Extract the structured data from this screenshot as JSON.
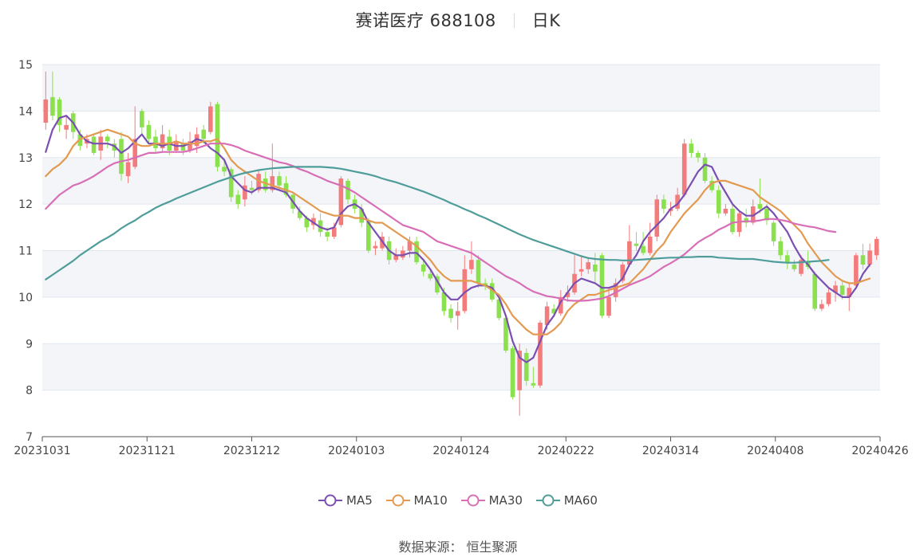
{
  "header": {
    "stock_name_code": "赛诺医疗 688108",
    "period": "日K"
  },
  "source_label": "数据来源：  恒生聚源",
  "colors": {
    "up": "#f47b7b",
    "down": "#8be04e",
    "ma5": "#7b4fb1",
    "ma10": "#e39a50",
    "ma30": "#d86fb6",
    "ma60": "#4f9d9a",
    "band": "#f3f5f9",
    "grid": "#e0e6ee"
  },
  "chart_data": {
    "type": "candlestick",
    "title": "赛诺医疗 688108 日K",
    "ylim": [
      7,
      15
    ],
    "yticks": [
      "7",
      "8",
      "9",
      "10",
      "11",
      "12",
      "13",
      "14",
      "15"
    ],
    "xticks": [
      "20231031",
      "20231121",
      "20231212",
      "20240103",
      "20240124",
      "20240222",
      "20240314",
      "20240408",
      "20240426"
    ],
    "candles": {
      "columns": [
        "open",
        "close",
        "high",
        "low"
      ],
      "rows": [
        [
          13.75,
          14.25,
          14.85,
          13.6
        ],
        [
          14.3,
          13.9,
          14.85,
          13.8
        ],
        [
          14.25,
          13.7,
          14.3,
          13.55
        ],
        [
          13.6,
          13.7,
          13.9,
          13.4
        ],
        [
          13.95,
          13.55,
          14.0,
          13.4
        ],
        [
          13.5,
          13.25,
          13.6,
          13.15
        ],
        [
          13.3,
          13.4,
          13.5,
          13.2
        ],
        [
          13.45,
          13.1,
          13.5,
          13.05
        ],
        [
          13.15,
          13.45,
          13.6,
          12.95
        ],
        [
          13.45,
          13.35,
          13.5,
          13.2
        ],
        [
          13.3,
          13.15,
          13.4,
          13.0
        ],
        [
          13.4,
          12.65,
          13.55,
          12.5
        ],
        [
          12.6,
          12.9,
          13.1,
          12.45
        ],
        [
          12.8,
          13.4,
          14.1,
          12.75
        ],
        [
          14.0,
          13.65,
          14.05,
          13.5
        ],
        [
          13.7,
          13.4,
          13.8,
          13.3
        ],
        [
          13.45,
          13.2,
          13.6,
          13.1
        ],
        [
          13.2,
          13.5,
          13.7,
          13.1
        ],
        [
          13.45,
          13.15,
          13.6,
          13.05
        ],
        [
          13.15,
          13.35,
          13.5,
          13.1
        ],
        [
          13.3,
          13.15,
          13.4,
          13.05
        ],
        [
          13.15,
          13.35,
          13.55,
          13.1
        ],
        [
          13.25,
          13.5,
          13.65,
          13.1
        ],
        [
          13.6,
          13.4,
          13.7,
          13.3
        ],
        [
          13.55,
          14.1,
          14.2,
          13.5
        ],
        [
          14.15,
          12.8,
          14.2,
          12.7
        ],
        [
          12.8,
          12.7,
          12.95,
          12.6
        ],
        [
          12.75,
          12.15,
          12.8,
          12.05
        ],
        [
          12.2,
          12.0,
          12.3,
          11.9
        ],
        [
          12.1,
          12.4,
          12.6,
          11.95
        ],
        [
          12.35,
          12.3,
          12.5,
          12.2
        ],
        [
          12.3,
          12.65,
          12.75,
          12.25
        ],
        [
          12.55,
          12.3,
          12.7,
          12.25
        ],
        [
          12.3,
          12.6,
          13.3,
          12.25
        ],
        [
          12.6,
          12.4,
          12.7,
          12.3
        ],
        [
          12.45,
          12.2,
          12.6,
          12.15
        ],
        [
          12.2,
          11.9,
          12.25,
          11.8
        ],
        [
          11.85,
          11.7,
          11.95,
          11.65
        ],
        [
          11.7,
          11.5,
          11.75,
          11.4
        ],
        [
          11.55,
          11.7,
          11.8,
          11.45
        ],
        [
          11.65,
          11.4,
          11.8,
          11.3
        ],
        [
          11.4,
          11.3,
          11.5,
          11.2
        ],
        [
          11.3,
          11.5,
          11.6,
          11.25
        ],
        [
          11.55,
          12.55,
          12.6,
          11.5
        ],
        [
          12.5,
          12.1,
          12.55,
          12.0
        ],
        [
          12.1,
          11.9,
          12.2,
          11.8
        ],
        [
          11.9,
          11.6,
          12.0,
          11.5
        ],
        [
          11.65,
          11.0,
          11.7,
          10.95
        ],
        [
          11.05,
          11.1,
          11.2,
          10.9
        ],
        [
          11.05,
          11.3,
          11.4,
          11.0
        ],
        [
          11.2,
          10.8,
          11.3,
          10.7
        ],
        [
          10.8,
          10.9,
          11.05,
          10.75
        ],
        [
          10.85,
          11.0,
          11.1,
          10.8
        ],
        [
          11.0,
          11.2,
          11.3,
          10.85
        ],
        [
          11.2,
          10.75,
          11.3,
          10.7
        ],
        [
          10.7,
          10.55,
          10.8,
          10.45
        ],
        [
          10.5,
          10.4,
          10.6,
          10.35
        ],
        [
          10.45,
          10.1,
          10.5,
          10.05
        ],
        [
          10.1,
          9.7,
          10.2,
          9.6
        ],
        [
          9.75,
          9.55,
          9.85,
          9.45
        ],
        [
          9.6,
          9.7,
          9.9,
          9.3
        ],
        [
          9.7,
          10.6,
          10.9,
          9.65
        ],
        [
          10.6,
          10.8,
          11.2,
          10.5
        ],
        [
          10.8,
          10.3,
          10.9,
          10.2
        ],
        [
          10.3,
          10.25,
          10.4,
          10.15
        ],
        [
          10.3,
          9.95,
          10.4,
          9.9
        ],
        [
          9.95,
          9.55,
          10.05,
          9.5
        ],
        [
          9.55,
          8.85,
          9.6,
          8.8
        ],
        [
          8.9,
          7.85,
          8.95,
          7.8
        ],
        [
          8.0,
          8.85,
          9.0,
          7.45
        ],
        [
          8.8,
          8.2,
          8.9,
          8.1
        ],
        [
          8.15,
          8.1,
          8.5,
          8.05
        ],
        [
          8.1,
          9.45,
          9.5,
          8.05
        ],
        [
          9.4,
          9.8,
          9.9,
          9.3
        ],
        [
          9.75,
          9.65,
          9.85,
          9.6
        ],
        [
          9.65,
          10.0,
          10.15,
          9.6
        ],
        [
          10.0,
          10.1,
          10.25,
          9.9
        ],
        [
          10.1,
          10.5,
          10.9,
          10.05
        ],
        [
          10.55,
          10.6,
          10.9,
          10.45
        ],
        [
          10.6,
          10.75,
          10.85,
          10.5
        ],
        [
          10.7,
          10.55,
          10.95,
          10.3
        ],
        [
          10.9,
          9.6,
          10.95,
          9.55
        ],
        [
          9.6,
          10.0,
          10.2,
          9.55
        ],
        [
          10.0,
          10.3,
          10.4,
          9.9
        ],
        [
          10.35,
          10.7,
          10.75,
          10.3
        ],
        [
          10.7,
          11.2,
          11.55,
          10.65
        ],
        [
          11.15,
          11.1,
          11.4,
          11.0
        ],
        [
          11.1,
          10.95,
          11.4,
          10.9
        ],
        [
          10.95,
          11.3,
          11.6,
          10.9
        ],
        [
          11.3,
          12.1,
          12.2,
          11.2
        ],
        [
          12.1,
          11.9,
          12.2,
          11.8
        ],
        [
          11.85,
          11.9,
          12.05,
          11.75
        ],
        [
          11.9,
          12.2,
          12.35,
          11.85
        ],
        [
          12.2,
          13.3,
          13.4,
          12.15
        ],
        [
          13.3,
          13.1,
          13.4,
          13.0
        ],
        [
          13.1,
          13.0,
          13.15,
          12.9
        ],
        [
          13.0,
          12.5,
          13.1,
          12.45
        ],
        [
          12.5,
          12.3,
          12.6,
          12.25
        ],
        [
          12.3,
          11.8,
          12.4,
          11.7
        ],
        [
          11.8,
          11.9,
          12.0,
          11.75
        ],
        [
          11.9,
          11.4,
          12.0,
          11.35
        ],
        [
          11.4,
          11.8,
          11.85,
          11.3
        ],
        [
          11.7,
          11.6,
          11.9,
          11.5
        ],
        [
          11.6,
          11.95,
          12.1,
          11.55
        ],
        [
          12.0,
          11.9,
          12.55,
          11.8
        ],
        [
          11.9,
          11.65,
          12.0,
          11.55
        ],
        [
          11.6,
          11.2,
          11.65,
          11.1
        ],
        [
          11.2,
          10.9,
          11.3,
          10.8
        ],
        [
          10.9,
          10.75,
          11.0,
          10.6
        ],
        [
          10.7,
          10.6,
          10.8,
          10.55
        ],
        [
          10.5,
          10.8,
          10.9,
          10.45
        ],
        [
          10.75,
          10.65,
          11.0,
          10.6
        ],
        [
          10.5,
          9.75,
          10.55,
          9.7
        ],
        [
          9.75,
          9.85,
          9.95,
          9.7
        ],
        [
          9.85,
          10.1,
          10.2,
          9.8
        ],
        [
          10.1,
          10.25,
          10.35,
          9.9
        ],
        [
          10.25,
          10.05,
          10.35,
          9.95
        ],
        [
          10.0,
          10.2,
          10.3,
          9.7
        ],
        [
          10.25,
          10.9,
          10.95,
          10.2
        ],
        [
          10.9,
          10.7,
          11.15,
          10.6
        ],
        [
          10.7,
          11.0,
          11.15,
          10.65
        ],
        [
          10.9,
          11.25,
          11.3,
          10.8
        ]
      ]
    },
    "series": [
      {
        "name": "MA5",
        "values": [
          13.12,
          13.6,
          13.85,
          13.9,
          13.75,
          13.5,
          13.35,
          13.3,
          13.3,
          13.3,
          13.25,
          13.1,
          13.2,
          13.35,
          13.5,
          13.3,
          13.3,
          13.25,
          13.3,
          13.25,
          13.25,
          13.3,
          13.4,
          13.35,
          13.2,
          13.1,
          12.95,
          12.6,
          12.45,
          12.3,
          12.25,
          12.35,
          12.35,
          12.35,
          12.3,
          12.25,
          12.05,
          11.85,
          11.7,
          11.6,
          11.5,
          11.45,
          11.5,
          11.8,
          11.95,
          12.0,
          11.9,
          11.6,
          11.4,
          11.2,
          11.0,
          10.9,
          10.9,
          10.95,
          10.95,
          10.8,
          10.6,
          10.35,
          10.1,
          9.95,
          9.95,
          10.1,
          10.2,
          10.25,
          10.25,
          10.2,
          10.0,
          9.6,
          9.05,
          8.7,
          8.6,
          8.7,
          9.05,
          9.4,
          9.6,
          9.9,
          10.1,
          10.3,
          10.4,
          10.35,
          10.3,
          10.2,
          10.2,
          10.25,
          10.4,
          10.7,
          10.9,
          11.2,
          11.4,
          11.55,
          11.7,
          11.9,
          12.0,
          12.2,
          12.45,
          12.7,
          12.85,
          12.8,
          12.5,
          12.25,
          12.0,
          11.85,
          11.75,
          11.75,
          11.85,
          11.95,
          11.8,
          11.6,
          11.4,
          11.1,
          10.85,
          10.7,
          10.5,
          10.35,
          10.2,
          10.1,
          10.0,
          10.0,
          10.2,
          10.5,
          10.7
        ]
      },
      {
        "name": "MA10",
        "values": [
          12.6,
          12.75,
          12.85,
          13.0,
          13.25,
          13.4,
          13.45,
          13.5,
          13.55,
          13.6,
          13.55,
          13.5,
          13.45,
          13.3,
          13.25,
          13.25,
          13.3,
          13.3,
          13.3,
          13.35,
          13.3,
          13.3,
          13.3,
          13.35,
          13.35,
          13.4,
          13.2,
          12.95,
          12.8,
          12.7,
          12.6,
          12.5,
          12.45,
          12.4,
          12.35,
          12.3,
          12.25,
          12.15,
          12.05,
          11.95,
          11.85,
          11.8,
          11.75,
          11.75,
          11.75,
          11.7,
          11.7,
          11.65,
          11.6,
          11.6,
          11.5,
          11.4,
          11.3,
          11.2,
          11.1,
          10.95,
          10.8,
          10.6,
          10.45,
          10.35,
          10.35,
          10.35,
          10.35,
          10.3,
          10.25,
          10.15,
          10.05,
          9.85,
          9.6,
          9.45,
          9.3,
          9.2,
          9.2,
          9.2,
          9.3,
          9.45,
          9.7,
          9.85,
          9.95,
          10.05,
          10.05,
          10.1,
          10.15,
          10.2,
          10.25,
          10.3,
          10.45,
          10.6,
          10.8,
          11.0,
          11.15,
          11.4,
          11.6,
          11.8,
          11.95,
          12.1,
          12.3,
          12.45,
          12.5,
          12.5,
          12.45,
          12.4,
          12.35,
          12.3,
          12.15,
          12.05,
          11.95,
          11.85,
          11.7,
          11.55,
          11.4,
          11.15,
          10.95,
          10.75,
          10.6,
          10.45,
          10.35,
          10.3,
          10.3,
          10.35,
          10.4
        ]
      },
      {
        "name": "MA30",
        "values": [
          11.9,
          12.05,
          12.2,
          12.3,
          12.4,
          12.45,
          12.52,
          12.6,
          12.7,
          12.8,
          12.88,
          12.92,
          12.95,
          13.0,
          13.05,
          13.1,
          13.1,
          13.12,
          13.12,
          13.12,
          13.12,
          13.15,
          13.2,
          13.25,
          13.3,
          13.3,
          13.3,
          13.27,
          13.22,
          13.15,
          13.1,
          13.05,
          13.0,
          12.95,
          12.9,
          12.87,
          12.82,
          12.75,
          12.7,
          12.63,
          12.57,
          12.5,
          12.45,
          12.4,
          12.33,
          12.25,
          12.15,
          12.05,
          11.95,
          11.85,
          11.75,
          11.65,
          11.55,
          11.5,
          11.45,
          11.4,
          11.3,
          11.2,
          11.15,
          11.1,
          11.05,
          11.0,
          10.95,
          10.85,
          10.75,
          10.65,
          10.55,
          10.45,
          10.38,
          10.3,
          10.2,
          10.12,
          10.07,
          10.02,
          10.0,
          9.97,
          9.93,
          9.92,
          9.92,
          9.93,
          9.95,
          9.97,
          10.02,
          10.1,
          10.18,
          10.26,
          10.32,
          10.38,
          10.45,
          10.55,
          10.65,
          10.73,
          10.82,
          10.92,
          11.05,
          11.18,
          11.27,
          11.35,
          11.45,
          11.52,
          11.6,
          11.62,
          11.63,
          11.63,
          11.65,
          11.68,
          11.68,
          11.66,
          11.63,
          11.58,
          11.55,
          11.52,
          11.5,
          11.46,
          11.42,
          11.4
        ]
      },
      {
        "name": "MA60",
        "values": [
          10.38,
          10.48,
          10.58,
          10.68,
          10.78,
          10.9,
          11.0,
          11.1,
          11.2,
          11.28,
          11.37,
          11.48,
          11.57,
          11.65,
          11.75,
          11.83,
          11.92,
          11.99,
          12.05,
          12.12,
          12.18,
          12.24,
          12.3,
          12.36,
          12.42,
          12.48,
          12.53,
          12.58,
          12.63,
          12.67,
          12.7,
          12.73,
          12.75,
          12.77,
          12.78,
          12.79,
          12.8,
          12.8,
          12.8,
          12.8,
          12.8,
          12.79,
          12.78,
          12.76,
          12.73,
          12.7,
          12.67,
          12.64,
          12.6,
          12.55,
          12.51,
          12.47,
          12.42,
          12.37,
          12.32,
          12.27,
          12.21,
          12.15,
          12.09,
          12.02,
          11.96,
          11.89,
          11.83,
          11.76,
          11.7,
          11.63,
          11.56,
          11.49,
          11.42,
          11.35,
          11.29,
          11.23,
          11.18,
          11.13,
          11.08,
          11.03,
          10.98,
          10.93,
          10.88,
          10.84,
          10.82,
          10.81,
          10.8,
          10.8,
          10.79,
          10.79,
          10.8,
          10.81,
          10.82,
          10.83,
          10.84,
          10.85,
          10.85,
          10.86,
          10.86,
          10.87,
          10.87,
          10.87,
          10.85,
          10.84,
          10.83,
          10.82,
          10.82,
          10.82,
          10.8,
          10.78,
          10.76,
          10.75,
          10.74,
          10.74,
          10.75,
          10.76,
          10.77,
          10.78,
          10.8
        ]
      }
    ],
    "legend": [
      "MA5",
      "MA10",
      "MA30",
      "MA60"
    ],
    "legend_position": "bottom",
    "grid": true
  }
}
